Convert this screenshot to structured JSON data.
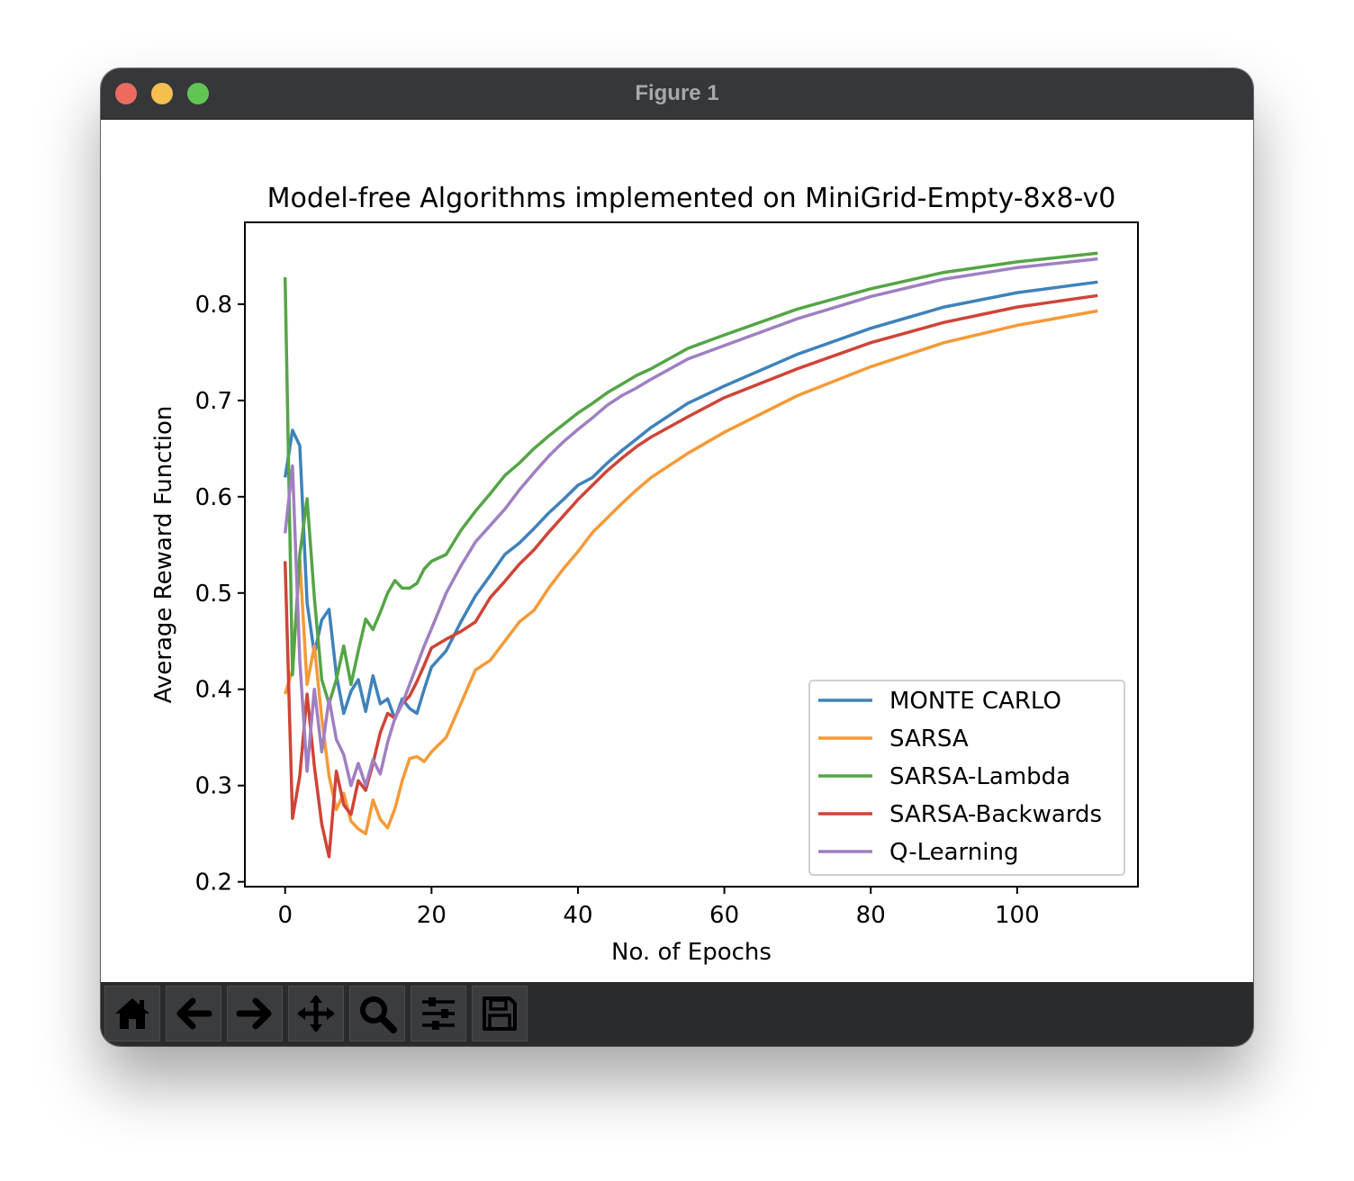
{
  "window": {
    "title": "Figure 1"
  },
  "toolbar": {
    "buttons": [
      {
        "icon": "home-icon"
      },
      {
        "icon": "back-arrow-icon"
      },
      {
        "icon": "forward-arrow-icon"
      },
      {
        "icon": "pan-move-icon"
      },
      {
        "icon": "zoom-magnifier-icon"
      },
      {
        "icon": "configure-subplots-icon"
      },
      {
        "icon": "save-floppy-icon"
      }
    ]
  },
  "colors": {
    "titlebar": "#36373a",
    "toolbar": "#2a2b2d",
    "MONTE CARLO": "#3f82ba",
    "SARSA": "#f59a37",
    "SARSA-Lambda": "#55a546",
    "SARSA-Backwards": "#cf4438",
    "Q-Learning": "#a07fc2"
  },
  "chart_data": {
    "type": "line",
    "title": "Model-free Algorithms implemented on MiniGrid-Empty-8x8-v0",
    "xlabel": "No. of Epochs",
    "ylabel": "Average Reward Function",
    "xlim": [
      -5.5,
      116.5
    ],
    "ylim": [
      0.195,
      0.885
    ],
    "xticks": [
      0,
      20,
      40,
      60,
      80,
      100
    ],
    "yticks": [
      0.2,
      0.3,
      0.4,
      0.5,
      0.6,
      0.7,
      0.8
    ],
    "grid": false,
    "legend_position": "lower right",
    "series": [
      {
        "name": "MONTE CARLO",
        "color": "#3f82ba",
        "points": [
          [
            0,
            0.62
          ],
          [
            1,
            0.669
          ],
          [
            2,
            0.653
          ],
          [
            3,
            0.49
          ],
          [
            4,
            0.437
          ],
          [
            5,
            0.472
          ],
          [
            6,
            0.483
          ],
          [
            7,
            0.415
          ],
          [
            8,
            0.375
          ],
          [
            9,
            0.398
          ],
          [
            10,
            0.41
          ],
          [
            11,
            0.377
          ],
          [
            12,
            0.414
          ],
          [
            13,
            0.385
          ],
          [
            14,
            0.39
          ],
          [
            15,
            0.369
          ],
          [
            16,
            0.39
          ],
          [
            17,
            0.38
          ],
          [
            18,
            0.375
          ],
          [
            19,
            0.4
          ],
          [
            20,
            0.423
          ],
          [
            22,
            0.44
          ],
          [
            24,
            0.47
          ],
          [
            26,
            0.497
          ],
          [
            28,
            0.518
          ],
          [
            30,
            0.54
          ],
          [
            32,
            0.552
          ],
          [
            34,
            0.567
          ],
          [
            36,
            0.583
          ],
          [
            38,
            0.597
          ],
          [
            40,
            0.612
          ],
          [
            42,
            0.62
          ],
          [
            44,
            0.635
          ],
          [
            46,
            0.648
          ],
          [
            48,
            0.66
          ],
          [
            50,
            0.672
          ],
          [
            55,
            0.697
          ],
          [
            60,
            0.715
          ],
          [
            70,
            0.748
          ],
          [
            80,
            0.775
          ],
          [
            90,
            0.797
          ],
          [
            100,
            0.812
          ],
          [
            111,
            0.823
          ]
        ]
      },
      {
        "name": "SARSA",
        "color": "#f59a37",
        "points": [
          [
            0,
            0.395
          ],
          [
            1,
            0.42
          ],
          [
            2,
            0.535
          ],
          [
            3,
            0.405
          ],
          [
            4,
            0.445
          ],
          [
            5,
            0.37
          ],
          [
            6,
            0.31
          ],
          [
            7,
            0.275
          ],
          [
            8,
            0.292
          ],
          [
            9,
            0.263
          ],
          [
            10,
            0.255
          ],
          [
            11,
            0.25
          ],
          [
            12,
            0.285
          ],
          [
            13,
            0.265
          ],
          [
            14,
            0.256
          ],
          [
            15,
            0.276
          ],
          [
            16,
            0.305
          ],
          [
            17,
            0.328
          ],
          [
            18,
            0.33
          ],
          [
            19,
            0.325
          ],
          [
            20,
            0.335
          ],
          [
            22,
            0.35
          ],
          [
            24,
            0.385
          ],
          [
            26,
            0.42
          ],
          [
            28,
            0.43
          ],
          [
            30,
            0.45
          ],
          [
            32,
            0.47
          ],
          [
            34,
            0.482
          ],
          [
            36,
            0.505
          ],
          [
            38,
            0.525
          ],
          [
            40,
            0.543
          ],
          [
            42,
            0.563
          ],
          [
            44,
            0.578
          ],
          [
            46,
            0.593
          ],
          [
            48,
            0.607
          ],
          [
            50,
            0.62
          ],
          [
            55,
            0.645
          ],
          [
            60,
            0.667
          ],
          [
            70,
            0.705
          ],
          [
            80,
            0.735
          ],
          [
            90,
            0.76
          ],
          [
            100,
            0.778
          ],
          [
            111,
            0.793
          ]
        ]
      },
      {
        "name": "SARSA-Lambda",
        "color": "#55a546",
        "points": [
          [
            0,
            0.828
          ],
          [
            1,
            0.415
          ],
          [
            2,
            0.54
          ],
          [
            3,
            0.598
          ],
          [
            4,
            0.495
          ],
          [
            5,
            0.41
          ],
          [
            6,
            0.385
          ],
          [
            7,
            0.41
          ],
          [
            8,
            0.445
          ],
          [
            9,
            0.405
          ],
          [
            10,
            0.44
          ],
          [
            11,
            0.473
          ],
          [
            12,
            0.462
          ],
          [
            13,
            0.48
          ],
          [
            14,
            0.5
          ],
          [
            15,
            0.513
          ],
          [
            16,
            0.505
          ],
          [
            17,
            0.505
          ],
          [
            18,
            0.51
          ],
          [
            19,
            0.525
          ],
          [
            20,
            0.533
          ],
          [
            22,
            0.54
          ],
          [
            24,
            0.565
          ],
          [
            26,
            0.585
          ],
          [
            28,
            0.603
          ],
          [
            30,
            0.622
          ],
          [
            32,
            0.635
          ],
          [
            34,
            0.65
          ],
          [
            36,
            0.663
          ],
          [
            38,
            0.675
          ],
          [
            40,
            0.687
          ],
          [
            42,
            0.697
          ],
          [
            44,
            0.708
          ],
          [
            46,
            0.717
          ],
          [
            48,
            0.726
          ],
          [
            50,
            0.733
          ],
          [
            55,
            0.754
          ],
          [
            60,
            0.768
          ],
          [
            70,
            0.795
          ],
          [
            80,
            0.816
          ],
          [
            90,
            0.833
          ],
          [
            100,
            0.844
          ],
          [
            111,
            0.853
          ]
        ]
      },
      {
        "name": "SARSA-Backwards",
        "color": "#cf4438",
        "points": [
          [
            0,
            0.533
          ],
          [
            1,
            0.266
          ],
          [
            2,
            0.31
          ],
          [
            3,
            0.395
          ],
          [
            4,
            0.32
          ],
          [
            5,
            0.26
          ],
          [
            6,
            0.226
          ],
          [
            7,
            0.315
          ],
          [
            8,
            0.28
          ],
          [
            9,
            0.27
          ],
          [
            10,
            0.305
          ],
          [
            11,
            0.295
          ],
          [
            12,
            0.323
          ],
          [
            13,
            0.355
          ],
          [
            14,
            0.375
          ],
          [
            15,
            0.37
          ],
          [
            16,
            0.385
          ],
          [
            17,
            0.393
          ],
          [
            18,
            0.408
          ],
          [
            19,
            0.425
          ],
          [
            20,
            0.443
          ],
          [
            22,
            0.452
          ],
          [
            24,
            0.46
          ],
          [
            26,
            0.47
          ],
          [
            28,
            0.495
          ],
          [
            30,
            0.512
          ],
          [
            32,
            0.53
          ],
          [
            34,
            0.545
          ],
          [
            36,
            0.563
          ],
          [
            38,
            0.58
          ],
          [
            40,
            0.597
          ],
          [
            42,
            0.612
          ],
          [
            44,
            0.627
          ],
          [
            46,
            0.64
          ],
          [
            48,
            0.652
          ],
          [
            50,
            0.662
          ],
          [
            55,
            0.683
          ],
          [
            60,
            0.703
          ],
          [
            70,
            0.733
          ],
          [
            80,
            0.76
          ],
          [
            90,
            0.781
          ],
          [
            100,
            0.797
          ],
          [
            111,
            0.809
          ]
        ]
      },
      {
        "name": "Q-Learning",
        "color": "#a07fc2",
        "points": [
          [
            0,
            0.562
          ],
          [
            1,
            0.632
          ],
          [
            2,
            0.43
          ],
          [
            3,
            0.315
          ],
          [
            4,
            0.4
          ],
          [
            5,
            0.335
          ],
          [
            6,
            0.39
          ],
          [
            7,
            0.348
          ],
          [
            8,
            0.332
          ],
          [
            9,
            0.3
          ],
          [
            10,
            0.323
          ],
          [
            11,
            0.3
          ],
          [
            12,
            0.327
          ],
          [
            13,
            0.312
          ],
          [
            14,
            0.345
          ],
          [
            15,
            0.37
          ],
          [
            16,
            0.385
          ],
          [
            17,
            0.405
          ],
          [
            18,
            0.425
          ],
          [
            19,
            0.445
          ],
          [
            20,
            0.463
          ],
          [
            22,
            0.5
          ],
          [
            24,
            0.528
          ],
          [
            26,
            0.553
          ],
          [
            28,
            0.57
          ],
          [
            30,
            0.587
          ],
          [
            32,
            0.607
          ],
          [
            34,
            0.625
          ],
          [
            36,
            0.642
          ],
          [
            38,
            0.657
          ],
          [
            40,
            0.67
          ],
          [
            42,
            0.682
          ],
          [
            44,
            0.695
          ],
          [
            46,
            0.705
          ],
          [
            48,
            0.713
          ],
          [
            50,
            0.722
          ],
          [
            55,
            0.743
          ],
          [
            60,
            0.757
          ],
          [
            70,
            0.785
          ],
          [
            80,
            0.808
          ],
          [
            90,
            0.826
          ],
          [
            100,
            0.838
          ],
          [
            111,
            0.847
          ]
        ]
      }
    ]
  }
}
